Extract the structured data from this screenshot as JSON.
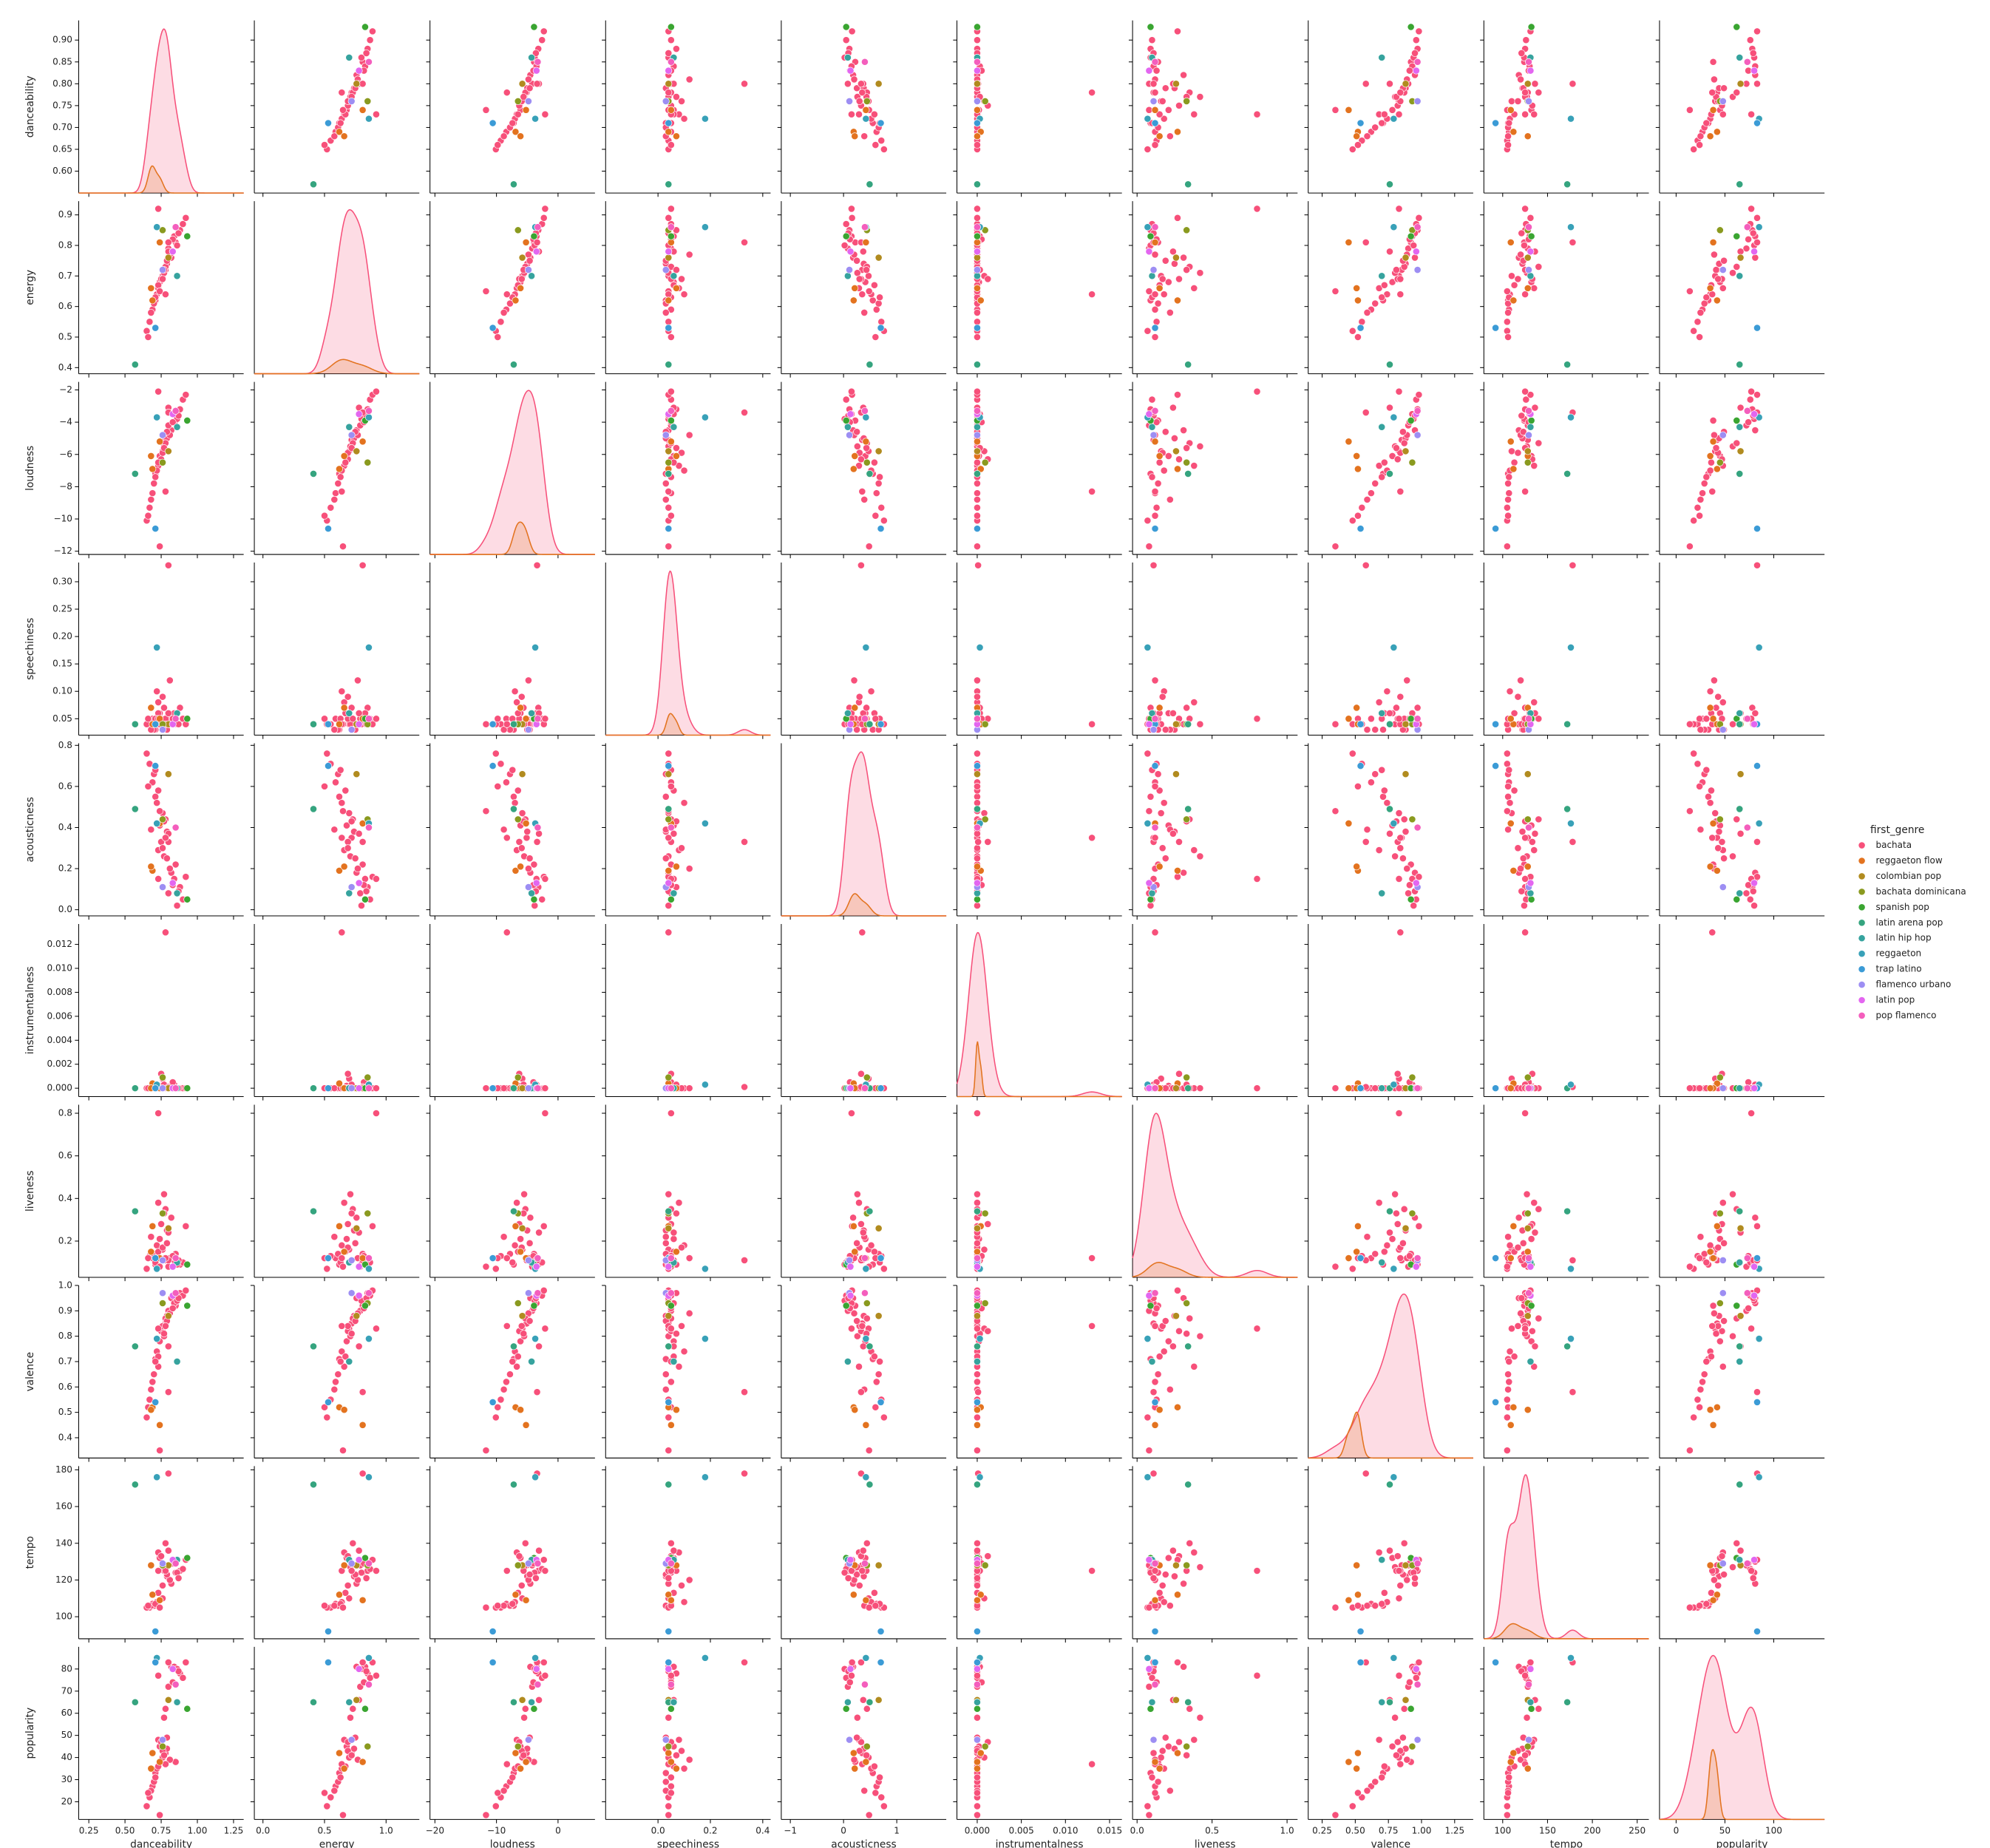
{
  "chart_data": {
    "type": "pairplot",
    "legend_title": "first_genre",
    "legend": "right",
    "variables": [
      {
        "name": "danceability",
        "xlim": [
          0.18,
          1.32
        ],
        "xticks": [
          {
            "value": 0.25,
            "label": "0.25"
          },
          {
            "value": 0.5,
            "label": "0.50"
          },
          {
            "value": 0.75,
            "label": "0.75"
          },
          {
            "value": 1,
            "label": "1.00"
          },
          {
            "value": 1.25,
            "label": "1.25"
          }
        ],
        "ylim": [
          0.55,
          0.945
        ],
        "yticks": [
          {
            "value": 0.6,
            "label": "0.60"
          },
          {
            "value": 0.65,
            "label": "0.65"
          },
          {
            "value": 0.7,
            "label": "0.70"
          },
          {
            "value": 0.75,
            "label": "0.75"
          },
          {
            "value": 0.8,
            "label": "0.80"
          },
          {
            "value": 0.85,
            "label": "0.85"
          },
          {
            "value": 0.9,
            "label": "0.90"
          }
        ]
      },
      {
        "name": "energy",
        "xlim": [
          -0.07,
          1.27
        ],
        "xticks": [
          {
            "value": 0,
            "label": "0.0"
          },
          {
            "value": 0.5,
            "label": "0.5"
          },
          {
            "value": 1,
            "label": "1.0"
          }
        ],
        "ylim": [
          0.38,
          0.945
        ],
        "yticks": [
          0.4,
          0.5,
          0.6,
          0.7,
          0.8,
          0.9
        ]
      },
      {
        "name": "loudness",
        "xlim": [
          -20.8,
          6
        ],
        "xticks": [
          {
            "value": -20,
            "label": "−20"
          },
          {
            "value": -10,
            "label": "−10"
          },
          {
            "value": 0,
            "label": "0"
          }
        ],
        "ylim": [
          -12.2,
          -1.5
        ],
        "yticks": [
          {
            "value": -12,
            "label": "−12"
          },
          {
            "value": -10,
            "label": "−10"
          },
          {
            "value": -8,
            "label": "−8"
          },
          {
            "value": -6,
            "label": "−6"
          },
          {
            "value": -4,
            "label": "−4"
          },
          {
            "value": -2,
            "label": "−2"
          }
        ]
      },
      {
        "name": "speechiness",
        "xlim": [
          -0.2,
          0.43
        ],
        "xticks": [
          {
            "value": 0,
            "label": "0.0"
          },
          0.2,
          0.4
        ],
        "ylim": [
          0.02,
          0.335
        ],
        "yticks": [
          0.05,
          {
            "value": 0.1,
            "label": "0.10"
          },
          0.15,
          {
            "value": 0.2,
            "label": "0.20"
          },
          0.25,
          {
            "value": 0.3,
            "label": "0.30"
          }
        ]
      },
      {
        "name": "acousticness",
        "xlim": [
          -1.17,
          1.93
        ],
        "xticks": [
          {
            "value": -1,
            "label": "−1"
          },
          0,
          1
        ],
        "ylim": [
          -0.03,
          0.81
        ],
        "yticks": [
          {
            "value": 0,
            "label": "0.0"
          },
          0.2,
          0.4,
          0.6,
          0.8
        ]
      },
      {
        "name": "instrumentalness",
        "xlim": [
          -0.0023,
          0.0164
        ],
        "xticks": [
          {
            "value": 0,
            "label": "0.000"
          },
          0.005,
          {
            "value": 0.01,
            "label": "0.010"
          },
          0.015
        ],
        "ylim": [
          -0.0007,
          0.0137
        ],
        "yticks": [
          {
            "value": 0,
            "label": "0.000"
          },
          0.002,
          0.004,
          0.006,
          0.008,
          {
            "value": 0.01,
            "label": "0.010"
          },
          0.012
        ]
      },
      {
        "name": "liveness",
        "xlim": [
          -0.03,
          1.07
        ],
        "xticks": [
          {
            "value": 0,
            "label": "0.0"
          },
          0.5,
          {
            "value": 1,
            "label": "1.0"
          }
        ],
        "ylim": [
          0.03,
          0.84
        ],
        "yticks": [
          0.2,
          0.4,
          0.6,
          0.8
        ]
      },
      {
        "name": "valence",
        "xlim": [
          0.145,
          1.39
        ],
        "xticks": [
          0.25,
          {
            "value": 0.5,
            "label": "0.50"
          },
          0.75,
          {
            "value": 1,
            "label": "1.00"
          },
          1.25
        ],
        "ylim": [
          0.32,
          1.0
        ],
        "yticks": [
          0.4,
          0.5,
          0.6,
          0.7,
          0.8,
          0.9,
          {
            "value": 1,
            "label": "1.0"
          }
        ]
      },
      {
        "name": "tempo",
        "xlim": [
          79,
          263
        ],
        "xticks": [
          100,
          150,
          200,
          250
        ],
        "ylim": [
          88,
          182
        ],
        "yticks": [
          100,
          120,
          140,
          160,
          180
        ]
      },
      {
        "name": "popularity",
        "xlim": [
          -17,
          152
        ],
        "xticks": [
          0,
          50,
          100
        ],
        "ylim": [
          12,
          90
        ],
        "yticks": [
          20,
          30,
          40,
          50,
          60,
          70,
          80
        ]
      }
    ],
    "series": [
      {
        "name": "bachata",
        "color": "#f7507a",
        "values": [
          [
            0.78,
            0.72,
            -5.1,
            0.04,
            0.35,
            0,
            0.11,
            0.85,
            128,
            42
          ],
          [
            0.85,
            0.81,
            -3.9,
            0.05,
            0.22,
            0,
            0.14,
            0.92,
            124,
            38
          ],
          [
            0.71,
            0.62,
            -7.2,
            0.03,
            0.55,
            0,
            0.09,
            0.71,
            106,
            33
          ],
          [
            0.74,
            0.68,
            -6.1,
            0.06,
            0.41,
            0.0002,
            0.21,
            0.78,
            132,
            45
          ],
          [
            0.82,
            0.76,
            -4.5,
            0.04,
            0.18,
            0,
            0.31,
            0.95,
            118,
            81
          ],
          [
            0.69,
            0.59,
            -8.4,
            0.05,
            0.62,
            0,
            0.12,
            0.62,
            107,
            27
          ],
          [
            0.88,
            0.85,
            -3.2,
            0.07,
            0.11,
            0,
            0.09,
            0.97,
            125,
            78
          ],
          [
            0.76,
            0.7,
            -5.8,
            0.04,
            0.47,
            0.0008,
            0.16,
            0.83,
            110,
            40
          ],
          [
            0.73,
            0.66,
            -6.7,
            0.08,
            0.29,
            0,
            0.38,
            0.68,
            135,
            48
          ],
          [
            0.8,
            0.79,
            -4.2,
            0.05,
            0.08,
            0,
            0.08,
            0.9,
            128,
            72
          ],
          [
            0.67,
            0.55,
            -9.3,
            0.04,
            0.71,
            0,
            0.13,
            0.55,
            105,
            22
          ],
          [
            0.79,
            0.74,
            -5,
            0.03,
            0.38,
            0,
            0.25,
            0.88,
            122,
            44
          ],
          [
            0.84,
            0.83,
            -3.5,
            0.06,
            0.15,
            0.0003,
            0.11,
            0.93,
            130,
            81
          ],
          [
            0.72,
            0.64,
            -7,
            0.1,
            0.52,
            0,
            0.18,
            0.74,
            108,
            35
          ],
          [
            0.77,
            0.71,
            -5.5,
            0.04,
            0.26,
            0,
            0.42,
            0.8,
            127,
            58
          ],
          [
            0.9,
            0.87,
            -2.6,
            0.05,
            0.05,
            0,
            0.1,
            0.96,
            126,
            76
          ],
          [
            0.7,
            0.61,
            -7.8,
            0.03,
            0.66,
            0,
            0.14,
            0.65,
            106,
            29
          ],
          [
            0.75,
            0.69,
            -6.3,
            0.05,
            0.33,
            0.0012,
            0.28,
            0.82,
            133,
            47
          ],
          [
            0.81,
            0.77,
            -4.8,
            0.12,
            0.2,
            0,
            0.12,
            0.89,
            120,
            39
          ],
          [
            0.65,
            0.52,
            -10.1,
            0.04,
            0.76,
            0,
            0.07,
            0.48,
            105,
            18
          ],
          [
            0.78,
            0.73,
            -5.3,
            0.05,
            0.44,
            0,
            0.35,
            0.87,
            140,
            62
          ],
          [
            0.86,
            0.8,
            -3.8,
            0.04,
            0.02,
            0,
            0.09,
            0.94,
            124,
            80
          ],
          [
            0.73,
            0.67,
            -6.5,
            0.06,
            0.58,
            0,
            0.15,
            0.72,
            113,
            36
          ],
          [
            0.68,
            0.58,
            -8.8,
            0.03,
            0.39,
            0,
            0.22,
            0.59,
            106,
            25
          ],
          [
            0.83,
            0.82,
            -4,
            0.05,
            0.12,
            0.0005,
            0.13,
            0.91,
            129,
            74
          ],
          [
            0.76,
            0.69,
            -5.9,
            0.09,
            0.3,
            0,
            0.17,
            0.84,
            117,
            43
          ],
          [
            0.92,
            0.89,
            -2.3,
            0.04,
            0.16,
            0,
            0.27,
            0.98,
            131,
            83
          ],
          [
            0.71,
            0.63,
            -7.4,
            0.05,
            0.68,
            0,
            0.1,
            0.7,
            107,
            31
          ],
          [
            0.79,
            0.75,
            -4.6,
            0.03,
            0.25,
            0,
            0.19,
            0.86,
            123,
            49
          ],
          [
            0.74,
            0.65,
            -11.7,
            0.04,
            0.48,
            0,
            0.08,
            0.35,
            105,
            14
          ],
          [
            0.8,
            0.78,
            -3.1,
            0.06,
            0.37,
            0,
            0.24,
            0.76,
            136,
            66
          ],
          [
            0.66,
            0.5,
            -9.8,
            0.05,
            0.6,
            0,
            0.12,
            0.52,
            106,
            24
          ],
          [
            0.87,
            0.84,
            -3.6,
            0.04,
            0.09,
            0,
            0.11,
            0.95,
            121,
            79
          ],
          [
            0.77,
            0.72,
            -5.6,
            0.07,
            0.43,
            0.0003,
            0.33,
            0.81,
            125,
            41
          ],
          [
            0.8,
            0.81,
            -3.4,
            0.33,
            0.33,
            0.0001,
            0.11,
            0.58,
            178,
            83
          ],
          [
            0.78,
            0.64,
            -8.3,
            0.04,
            0.35,
            0.013,
            0.12,
            0.84,
            125,
            37
          ],
          [
            0.73,
            0.92,
            -2.1,
            0.05,
            0.15,
            0,
            0.8,
            0.83,
            125,
            77
          ]
        ]
      },
      {
        "name": "reggaeton flow",
        "color": "#e3731f",
        "values": [
          [
            0.69,
            0.62,
            -6.9,
            0.04,
            0.19,
            0.0004,
            0.27,
            0.52,
            112,
            42
          ],
          [
            0.74,
            0.81,
            -5.2,
            0.05,
            0.42,
            0,
            0.12,
            0.45,
            109,
            38
          ],
          [
            0.68,
            0.66,
            -6.1,
            0.07,
            0.21,
            0,
            0.15,
            0.51,
            128,
            35
          ]
        ]
      },
      {
        "name": "colombian pop",
        "color": "#b18b1f",
        "values": [
          [
            0.8,
            0.76,
            -5.8,
            0.04,
            0.66,
            0,
            0.26,
            0.88,
            128,
            66
          ]
        ]
      },
      {
        "name": "bachata dominicana",
        "color": "#8a9a1f",
        "values": [
          [
            0.76,
            0.85,
            -6.5,
            0.04,
            0.44,
            0.0009,
            0.33,
            0.93,
            128,
            45
          ]
        ]
      },
      {
        "name": "spanish pop",
        "color": "#3aa531",
        "values": [
          [
            0.93,
            0.83,
            -3.9,
            0.05,
            0.05,
            0,
            0.09,
            0.92,
            132,
            62
          ]
        ]
      },
      {
        "name": "latin arena pop",
        "color": "#35a47f",
        "values": [
          [
            0.57,
            0.41,
            -7.2,
            0.04,
            0.49,
            0,
            0.34,
            0.76,
            172,
            65
          ]
        ]
      },
      {
        "name": "latin hip hop",
        "color": "#36a39e",
        "values": [
          [
            0.86,
            0.7,
            -4.3,
            0.06,
            0.08,
            0,
            0.1,
            0.7,
            131,
            65
          ]
        ]
      },
      {
        "name": "reggaeton",
        "color": "#38a1b8",
        "values": [
          [
            0.72,
            0.86,
            -3.7,
            0.18,
            0.42,
            0.0003,
            0.07,
            0.79,
            176,
            85
          ]
        ]
      },
      {
        "name": "trap latino",
        "color": "#3b9bd6",
        "values": [
          [
            0.71,
            0.53,
            -10.6,
            0.04,
            0.7,
            0,
            0.12,
            0.54,
            92,
            83
          ]
        ]
      },
      {
        "name": "flamenco urbano",
        "color": "#9d8ef3",
        "values": [
          [
            0.76,
            0.72,
            -4.8,
            0.03,
            0.11,
            0,
            0.11,
            0.97,
            129,
            48
          ]
        ]
      },
      {
        "name": "latin pop",
        "color": "#e366f0",
        "values": [
          [
            0.83,
            0.78,
            -3.5,
            0.04,
            0.13,
            0,
            0.08,
            0.96,
            131,
            80
          ]
        ]
      },
      {
        "name": "pop flamenco",
        "color": "#f45ebd",
        "values": [
          [
            0.85,
            0.86,
            -3.3,
            0.05,
            0.4,
            0,
            0.12,
            0.97,
            129,
            73
          ]
        ]
      }
    ]
  }
}
